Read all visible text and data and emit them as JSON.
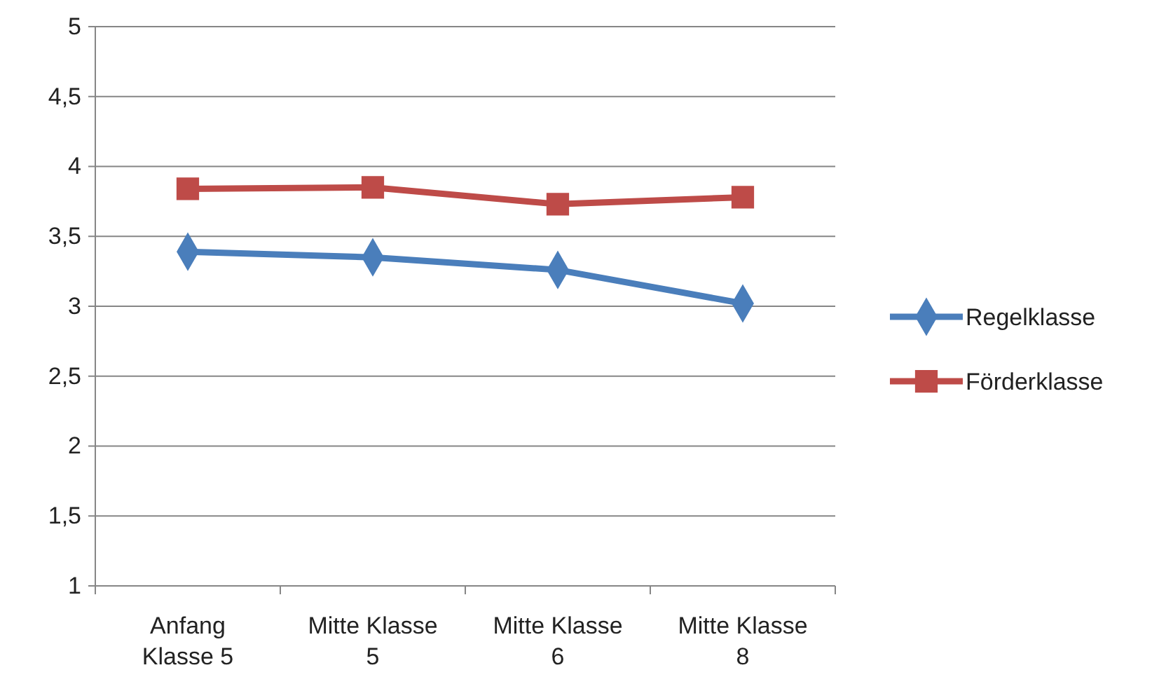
{
  "chart_data": {
    "type": "line",
    "categories": [
      "Anfang Klasse 5",
      "Mitte Klasse 5",
      "Mitte Klasse 6",
      "Mitte Klasse 8"
    ],
    "series": [
      {
        "name": "Regelklasse",
        "color": "#4a7ebb",
        "values": [
          3.39,
          3.35,
          3.26,
          3.02
        ],
        "marker": "diamond"
      },
      {
        "name": "Förderklasse",
        "color": "#be4b48",
        "values": [
          3.84,
          3.85,
          3.73,
          3.78
        ],
        "marker": "square"
      }
    ],
    "ylim": [
      1,
      5
    ],
    "yticks": [
      1,
      {
        "value": 1.5,
        "label": "1,5"
      },
      2,
      {
        "value": 2.5,
        "label": "2,5"
      },
      3,
      {
        "value": 3.5,
        "label": "3,5"
      },
      4,
      {
        "value": 4.5,
        "label": "4,5"
      },
      5
    ],
    "grid": "y",
    "legend": "right",
    "line_style": "solid"
  }
}
